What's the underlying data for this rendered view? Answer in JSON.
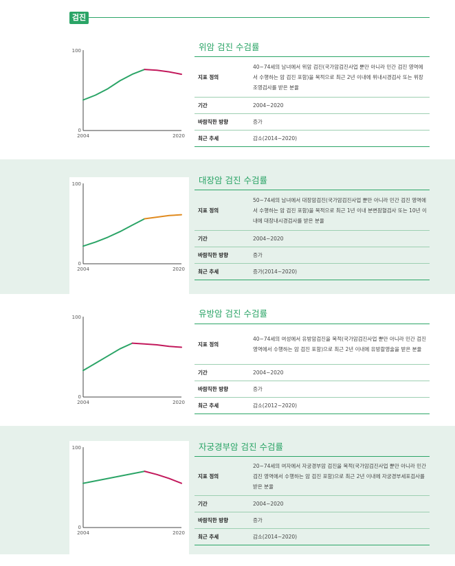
{
  "header": {
    "tag": "검진"
  },
  "sections": [
    {
      "title": "위암 검진 수검률",
      "definition_label": "지표 정의",
      "definition": "40~74세의 남녀에서 위암 검진(국가암검진사업 뿐만 아니라 민간 검진 영역에서 수행하는 암 검진 포함)을 목적으로 최근 2년 이내에 위내시경검사 또는 위장조영검사를 받은 분율",
      "period_label": "기간",
      "period": "2004~2020",
      "direction_label": "바람직한 방향",
      "direction": "증가",
      "trend_label": "최근 추세",
      "trend": "감소(2014~2020)"
    },
    {
      "title": "대장암 검진 수검률",
      "definition_label": "지표 정의",
      "definition": "50~74세의 남녀에서 대장암검진(국가암검진사업 뿐만 아니라 민간 검진 영역에서 수행하는 암 검진 포함)을 목적으로 최근 1년 이내 분변잠혈검사 또는 10년 이내에 대장내시경검사를 받은 분율",
      "period_label": "기간",
      "period": "2004~2020",
      "direction_label": "바람직한 방향",
      "direction": "증가",
      "trend_label": "최근 추세",
      "trend": "증가(2014~2020)"
    },
    {
      "title": "유방암 검진 수검률",
      "definition_label": "지표 정의",
      "definition": "40~74세의 여성에서 유방암검진을 목적(국가암검진사업 뿐만 아니라 민간 검진 영역에서 수행하는 암 검진 포함)으로 최근 2년 이내에 유방촬영술을 받은 분율",
      "period_label": "기간",
      "period": "2004~2020",
      "direction_label": "바람직한 방향",
      "direction": "증가",
      "trend_label": "최근 추세",
      "trend": "감소(2012~2020)"
    },
    {
      "title": "자궁경부암 검진 수검률",
      "definition_label": "지표 정의",
      "definition": "20~74세의 여자에서 자궁경부암 검진을 목적(국가암검진사업 뿐만 아니라 민간 검진 영역에서 수행하는 암 검진 포함)으로 최근 2년 이내에 자궁경부세포검사를 받은 분율",
      "period_label": "기간",
      "period": "2004~2020",
      "direction_label": "바람직한 방향",
      "direction": "증가",
      "trend_label": "최근 추세",
      "trend": "감소(2014~2020)"
    }
  ],
  "chart_data": [
    {
      "type": "line",
      "title": "",
      "ylim": [
        0,
        100
      ],
      "yticks": [
        "0",
        "100"
      ],
      "xticks": [
        "2004",
        "2020"
      ],
      "series": [
        {
          "x": [
            2004,
            2006,
            2008,
            2010,
            2012,
            2014
          ],
          "values": [
            38,
            44,
            52,
            62,
            70,
            76
          ],
          "color": "#2aa466"
        },
        {
          "x": [
            2014,
            2016,
            2018,
            2020
          ],
          "values": [
            76,
            75,
            73,
            70
          ],
          "color": "#c2185b"
        }
      ]
    },
    {
      "type": "line",
      "title": "",
      "ylim": [
        0,
        100
      ],
      "yticks": [
        "0",
        "100"
      ],
      "xticks": [
        "2004",
        "2020"
      ],
      "series": [
        {
          "x": [
            2004,
            2006,
            2008,
            2010,
            2012,
            2014
          ],
          "values": [
            22,
            27,
            33,
            40,
            48,
            56
          ],
          "color": "#2aa466"
        },
        {
          "x": [
            2014,
            2016,
            2018,
            2020
          ],
          "values": [
            56,
            58,
            60,
            61
          ],
          "color": "#e08a1e"
        }
      ]
    },
    {
      "type": "line",
      "title": "",
      "ylim": [
        0,
        100
      ],
      "yticks": [
        "0",
        "100"
      ],
      "xticks": [
        "2004",
        "2020"
      ],
      "series": [
        {
          "x": [
            2004,
            2006,
            2008,
            2010,
            2012
          ],
          "values": [
            33,
            42,
            51,
            60,
            67
          ],
          "color": "#2aa466"
        },
        {
          "x": [
            2012,
            2014,
            2016,
            2018,
            2020
          ],
          "values": [
            67,
            66,
            65,
            63,
            62
          ],
          "color": "#c2185b"
        }
      ]
    },
    {
      "type": "line",
      "title": "",
      "ylim": [
        0,
        100
      ],
      "yticks": [
        "0",
        "100"
      ],
      "xticks": [
        "2004",
        "2020"
      ],
      "series": [
        {
          "x": [
            2004,
            2006,
            2008,
            2010,
            2012,
            2014
          ],
          "values": [
            55,
            58,
            61,
            64,
            67,
            70
          ],
          "color": "#2aa466"
        },
        {
          "x": [
            2014,
            2016,
            2018,
            2020
          ],
          "values": [
            70,
            66,
            61,
            55
          ],
          "color": "#c2185b"
        }
      ]
    }
  ]
}
